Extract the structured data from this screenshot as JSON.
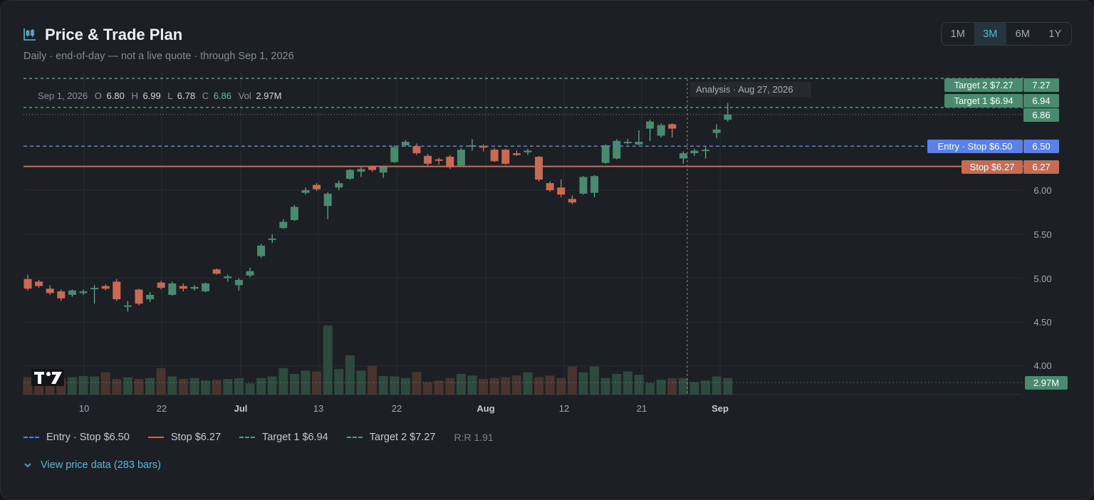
{
  "header": {
    "title": "Price & Trade Plan",
    "subtitle": "Daily · end-of-day — not a live quote · through Sep 1, 2026",
    "icon": "candlestick-chart-icon"
  },
  "ranges": [
    "1M",
    "3M",
    "6M",
    "1Y"
  ],
  "active_range": "3M",
  "ohlc": {
    "date": "Sep 1, 2026",
    "o_label": "O",
    "o": "6.80",
    "h_label": "H",
    "h": "6.99",
    "l_label": "L",
    "l": "6.78",
    "c_label": "C",
    "c": "6.86",
    "vol_label": "Vol",
    "vol": "2.97M"
  },
  "analysis_label": "Analysis · Aug 27, 2026",
  "colors": {
    "up": "#4a8a6e",
    "down": "#c96b54",
    "entry": "#5b80e8",
    "stop": "#c96b54",
    "target": "#5a9a80",
    "accent": "#5bb8d9"
  },
  "chart_data": {
    "type": "candlestick",
    "x_ticks": [
      "10",
      "22",
      "Jul",
      "13",
      "22",
      "Aug",
      "12",
      "21",
      "Sep"
    ],
    "y_ticks": [
      "4.00",
      "4.50",
      "5.00",
      "5.50",
      "6.00"
    ],
    "ylim": [
      3.8,
      7.4
    ],
    "price_tags": {
      "target2": "7.27",
      "target1": "6.94",
      "last": "6.86",
      "entry": "6.50",
      "stop": "6.27",
      "volume": "2.97M"
    },
    "levels": [
      {
        "label": "Target 2 $7.27",
        "value": 7.27,
        "kind": "target"
      },
      {
        "label": "Target 1 $6.94",
        "value": 6.94,
        "kind": "target"
      },
      {
        "label": "Entry · Stop $6.50",
        "value": 6.5,
        "kind": "entry"
      },
      {
        "label": "Stop $6.27",
        "value": 6.27,
        "kind": "stop"
      }
    ],
    "last_price": 6.86,
    "candles": [
      {
        "o": 4.99,
        "h": 5.04,
        "l": 4.86,
        "c": 4.88
      },
      {
        "o": 4.96,
        "h": 4.98,
        "l": 4.89,
        "c": 4.91
      },
      {
        "o": 4.88,
        "h": 4.92,
        "l": 4.81,
        "c": 4.83
      },
      {
        "o": 4.85,
        "h": 4.87,
        "l": 4.74,
        "c": 4.77
      },
      {
        "o": 4.81,
        "h": 4.87,
        "l": 4.79,
        "c": 4.86
      },
      {
        "o": 4.83,
        "h": 4.87,
        "l": 4.81,
        "c": 4.85
      },
      {
        "o": 4.88,
        "h": 4.92,
        "l": 4.71,
        "c": 4.89
      },
      {
        "o": 4.91,
        "h": 4.93,
        "l": 4.86,
        "c": 4.88
      },
      {
        "o": 4.96,
        "h": 4.99,
        "l": 4.74,
        "c": 4.76
      },
      {
        "o": 4.68,
        "h": 4.74,
        "l": 4.62,
        "c": 4.69
      },
      {
        "o": 4.87,
        "h": 4.88,
        "l": 4.69,
        "c": 4.71
      },
      {
        "o": 4.76,
        "h": 4.84,
        "l": 4.73,
        "c": 4.81
      },
      {
        "o": 4.95,
        "h": 4.97,
        "l": 4.87,
        "c": 4.89
      },
      {
        "o": 4.81,
        "h": 4.96,
        "l": 4.8,
        "c": 4.94
      },
      {
        "o": 4.91,
        "h": 4.94,
        "l": 4.85,
        "c": 4.88
      },
      {
        "o": 4.88,
        "h": 4.92,
        "l": 4.86,
        "c": 4.9
      },
      {
        "o": 4.85,
        "h": 4.95,
        "l": 4.84,
        "c": 4.94
      },
      {
        "o": 5.1,
        "h": 5.11,
        "l": 5.04,
        "c": 5.05
      },
      {
        "o": 5.0,
        "h": 5.04,
        "l": 4.96,
        "c": 5.02
      },
      {
        "o": 4.92,
        "h": 5.0,
        "l": 4.86,
        "c": 4.98
      },
      {
        "o": 5.03,
        "h": 5.12,
        "l": 5.01,
        "c": 5.08
      },
      {
        "o": 5.25,
        "h": 5.39,
        "l": 5.23,
        "c": 5.37
      },
      {
        "o": 5.44,
        "h": 5.5,
        "l": 5.4,
        "c": 5.45
      },
      {
        "o": 5.57,
        "h": 5.67,
        "l": 5.56,
        "c": 5.64
      },
      {
        "o": 5.66,
        "h": 5.83,
        "l": 5.65,
        "c": 5.81
      },
      {
        "o": 5.97,
        "h": 6.03,
        "l": 5.95,
        "c": 6.0
      },
      {
        "o": 6.06,
        "h": 6.08,
        "l": 5.99,
        "c": 6.01
      },
      {
        "o": 5.82,
        "h": 5.98,
        "l": 5.67,
        "c": 5.96
      },
      {
        "o": 6.03,
        "h": 6.11,
        "l": 6.0,
        "c": 6.08
      },
      {
        "o": 6.13,
        "h": 6.24,
        "l": 6.12,
        "c": 6.23
      },
      {
        "o": 6.21,
        "h": 6.26,
        "l": 6.15,
        "c": 6.24
      },
      {
        "o": 6.27,
        "h": 6.28,
        "l": 6.21,
        "c": 6.23
      },
      {
        "o": 6.2,
        "h": 6.28,
        "l": 6.14,
        "c": 6.27
      },
      {
        "o": 6.32,
        "h": 6.51,
        "l": 6.31,
        "c": 6.49
      },
      {
        "o": 6.51,
        "h": 6.57,
        "l": 6.5,
        "c": 6.55
      },
      {
        "o": 6.5,
        "h": 6.53,
        "l": 6.4,
        "c": 6.42
      },
      {
        "o": 6.39,
        "h": 6.41,
        "l": 6.28,
        "c": 6.3
      },
      {
        "o": 6.35,
        "h": 6.37,
        "l": 6.29,
        "c": 6.34
      },
      {
        "o": 6.38,
        "h": 6.4,
        "l": 6.24,
        "c": 6.26
      },
      {
        "o": 6.28,
        "h": 6.48,
        "l": 6.27,
        "c": 6.46
      },
      {
        "o": 6.5,
        "h": 6.58,
        "l": 6.45,
        "c": 6.51
      },
      {
        "o": 6.5,
        "h": 6.52,
        "l": 6.44,
        "c": 6.49
      },
      {
        "o": 6.46,
        "h": 6.48,
        "l": 6.32,
        "c": 6.33
      },
      {
        "o": 6.46,
        "h": 6.47,
        "l": 6.29,
        "c": 6.3
      },
      {
        "o": 6.42,
        "h": 6.45,
        "l": 6.39,
        "c": 6.4
      },
      {
        "o": 6.43,
        "h": 6.47,
        "l": 6.4,
        "c": 6.45
      },
      {
        "o": 6.38,
        "h": 6.39,
        "l": 6.1,
        "c": 6.12
      },
      {
        "o": 6.08,
        "h": 6.1,
        "l": 5.98,
        "c": 6.0
      },
      {
        "o": 6.03,
        "h": 6.12,
        "l": 5.92,
        "c": 5.95
      },
      {
        "o": 5.9,
        "h": 5.94,
        "l": 5.84,
        "c": 5.86
      },
      {
        "o": 5.96,
        "h": 6.16,
        "l": 5.95,
        "c": 6.15
      },
      {
        "o": 5.97,
        "h": 6.17,
        "l": 5.92,
        "c": 6.16
      },
      {
        "o": 6.31,
        "h": 6.52,
        "l": 6.3,
        "c": 6.51
      },
      {
        "o": 6.36,
        "h": 6.58,
        "l": 6.35,
        "c": 6.56
      },
      {
        "o": 6.55,
        "h": 6.58,
        "l": 6.52,
        "c": 6.55
      },
      {
        "o": 6.52,
        "h": 6.68,
        "l": 6.51,
        "c": 6.55
      },
      {
        "o": 6.7,
        "h": 6.8,
        "l": 6.56,
        "c": 6.78
      },
      {
        "o": 6.62,
        "h": 6.76,
        "l": 6.6,
        "c": 6.74
      },
      {
        "o": 6.75,
        "h": 6.76,
        "l": 6.6,
        "c": 6.7
      },
      {
        "o": 6.36,
        "h": 6.44,
        "l": 6.3,
        "c": 6.42
      },
      {
        "o": 6.42,
        "h": 6.47,
        "l": 6.39,
        "c": 6.45
      },
      {
        "o": 6.46,
        "h": 6.49,
        "l": 6.36,
        "c": 6.46
      },
      {
        "o": 6.65,
        "h": 6.75,
        "l": 6.59,
        "c": 6.69
      },
      {
        "o": 6.8,
        "h": 6.99,
        "l": 6.78,
        "c": 6.86
      }
    ],
    "volumes": [
      0.42,
      0.44,
      0.36,
      0.4,
      0.42,
      0.45,
      0.44,
      0.54,
      0.38,
      0.42,
      0.38,
      0.4,
      0.64,
      0.44,
      0.38,
      0.4,
      0.34,
      0.36,
      0.38,
      0.4,
      0.27,
      0.4,
      0.44,
      0.64,
      0.5,
      0.58,
      0.56,
      1.67,
      0.62,
      0.95,
      0.58,
      0.7,
      0.45,
      0.44,
      0.4,
      0.55,
      0.3,
      0.34,
      0.4,
      0.5,
      0.46,
      0.38,
      0.4,
      0.42,
      0.46,
      0.54,
      0.42,
      0.46,
      0.4,
      0.68,
      0.54,
      0.68,
      0.4,
      0.5,
      0.56,
      0.48,
      0.28,
      0.36,
      0.4,
      0.4,
      0.3,
      0.34,
      0.44,
      0.4
    ]
  },
  "legend": {
    "entry": "Entry · Stop $6.50",
    "stop": "Stop $6.27",
    "target1": "Target 1 $6.94",
    "target2": "Target 2 $7.27",
    "rr": "R:R 1.91"
  },
  "expand_label": "View price data (283 bars)"
}
